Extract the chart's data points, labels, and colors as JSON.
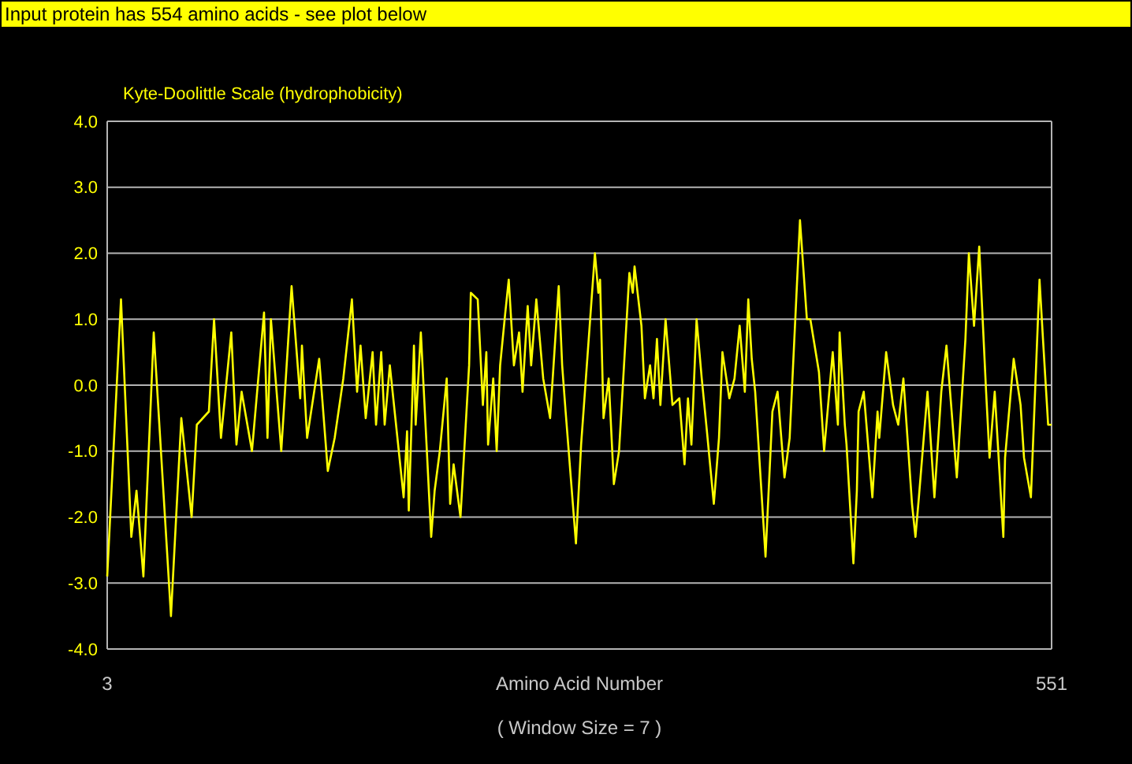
{
  "chart_data": {
    "type": "line",
    "title": "Input protein has 554 amino acids - see plot below",
    "ylabel": "Kyte-Doolittle Scale (hydrophobicity)",
    "xlabel": "Amino Acid Number",
    "annotations": [
      "( Window Size = 7 )"
    ],
    "series": [
      {
        "color": "#ffff00",
        "x": [
          3,
          11,
          17,
          20,
          24,
          30,
          40,
          46,
          52,
          55,
          62,
          65,
          69,
          75,
          78,
          81,
          87,
          94,
          96,
          98,
          104,
          110,
          115,
          116,
          119,
          126,
          131,
          135,
          140,
          145,
          148,
          150,
          153,
          157,
          159,
          162,
          164,
          167,
          175,
          177,
          178,
          181,
          182,
          185,
          191,
          193,
          196,
          200,
          202,
          204,
          208,
          213,
          214,
          218,
          221,
          223,
          224,
          227,
          229,
          231,
          234,
          236,
          239,
          242,
          244,
          247,
          249,
          252,
          256,
          260,
          263,
          265,
          267,
          269,
          275,
          278,
          286,
          288,
          289,
          291,
          294,
          297,
          300,
          306,
          308,
          309,
          313,
          315,
          318,
          320,
          322,
          324,
          327,
          331,
          335,
          338,
          340,
          342,
          345,
          348,
          351,
          355,
          358,
          360,
          364,
          367,
          370,
          373,
          375,
          377,
          379,
          385,
          389,
          392,
          396,
          399,
          405,
          409,
          411,
          416,
          419,
          424,
          427,
          428,
          431,
          432,
          436,
          438,
          439,
          442,
          447,
          450,
          451,
          455,
          459,
          462,
          465,
          470,
          472,
          474,
          479,
          483,
          487,
          490,
          496,
          501,
          503,
          506,
          509,
          513,
          515,
          518,
          523,
          524,
          529,
          533,
          535,
          539,
          544,
          546,
          549,
          551
        ],
        "values": [
          -2.9,
          1.3,
          -2.3,
          -1.6,
          -2.9,
          0.8,
          -3.5,
          -0.5,
          -2.0,
          -0.6,
          -0.4,
          1.0,
          -0.8,
          0.8,
          -0.9,
          -0.1,
          -1.0,
          1.1,
          -0.8,
          1.0,
          -1.0,
          1.5,
          -0.2,
          0.6,
          -0.8,
          0.4,
          -1.3,
          -0.8,
          0.1,
          1.3,
          -0.1,
          0.6,
          -0.5,
          0.5,
          -0.6,
          0.5,
          -0.6,
          0.3,
          -1.7,
          -0.7,
          -1.9,
          0.6,
          -0.6,
          0.8,
          -2.3,
          -1.6,
          -1.0,
          0.1,
          -1.8,
          -1.2,
          -2.0,
          0.3,
          1.4,
          1.3,
          -0.3,
          0.5,
          -0.9,
          0.1,
          -1.0,
          0.3,
          1.1,
          1.6,
          0.3,
          0.8,
          -0.1,
          1.2,
          0.3,
          1.3,
          0.1,
          -0.5,
          0.7,
          1.5,
          0.3,
          -0.4,
          -2.4,
          -0.9,
          2.0,
          1.4,
          1.6,
          -0.5,
          0.1,
          -1.5,
          -1.0,
          1.7,
          1.4,
          1.8,
          0.9,
          -0.2,
          0.3,
          -0.2,
          0.7,
          -0.3,
          1.0,
          -0.3,
          -0.2,
          -1.2,
          -0.2,
          -0.9,
          1.0,
          0.1,
          -0.7,
          -1.8,
          -0.8,
          0.5,
          -0.2,
          0.1,
          0.9,
          -0.1,
          1.3,
          0.4,
          -0.1,
          -2.6,
          -0.4,
          -0.1,
          -1.4,
          -0.8,
          2.5,
          1.0,
          1.0,
          0.2,
          -1.0,
          0.5,
          -0.6,
          0.8,
          -0.6,
          -0.9,
          -2.7,
          -1.6,
          -0.4,
          -0.1,
          -1.7,
          -0.4,
          -0.8,
          0.5,
          -0.3,
          -0.6,
          0.1,
          -1.8,
          -2.3,
          -1.7,
          -0.1,
          -1.7,
          -0.1,
          0.6,
          -1.4,
          0.7,
          2.0,
          0.9,
          2.1,
          -0.1,
          -1.1,
          -0.1,
          -2.3,
          -1.1,
          0.4,
          -0.3,
          -1.1,
          -1.7,
          1.6,
          0.7,
          -0.6,
          -0.6
        ]
      }
    ],
    "xlim": [
      3,
      551
    ],
    "xticks": [
      3,
      551
    ],
    "ylim": [
      -4,
      4
    ],
    "yticks": [
      {
        "value": -4,
        "label": "-4.0"
      },
      {
        "value": -3,
        "label": "-3.0"
      },
      {
        "value": -2,
        "label": "-2.0"
      },
      {
        "value": -1,
        "label": "-1.0"
      },
      {
        "value": 0,
        "label": "0.0"
      },
      {
        "value": 1,
        "label": "1.0"
      },
      {
        "value": 2,
        "label": "2.0"
      },
      {
        "value": 3,
        "label": "3.0"
      },
      {
        "value": 4,
        "label": "4.0"
      }
    ],
    "grid": "y"
  }
}
